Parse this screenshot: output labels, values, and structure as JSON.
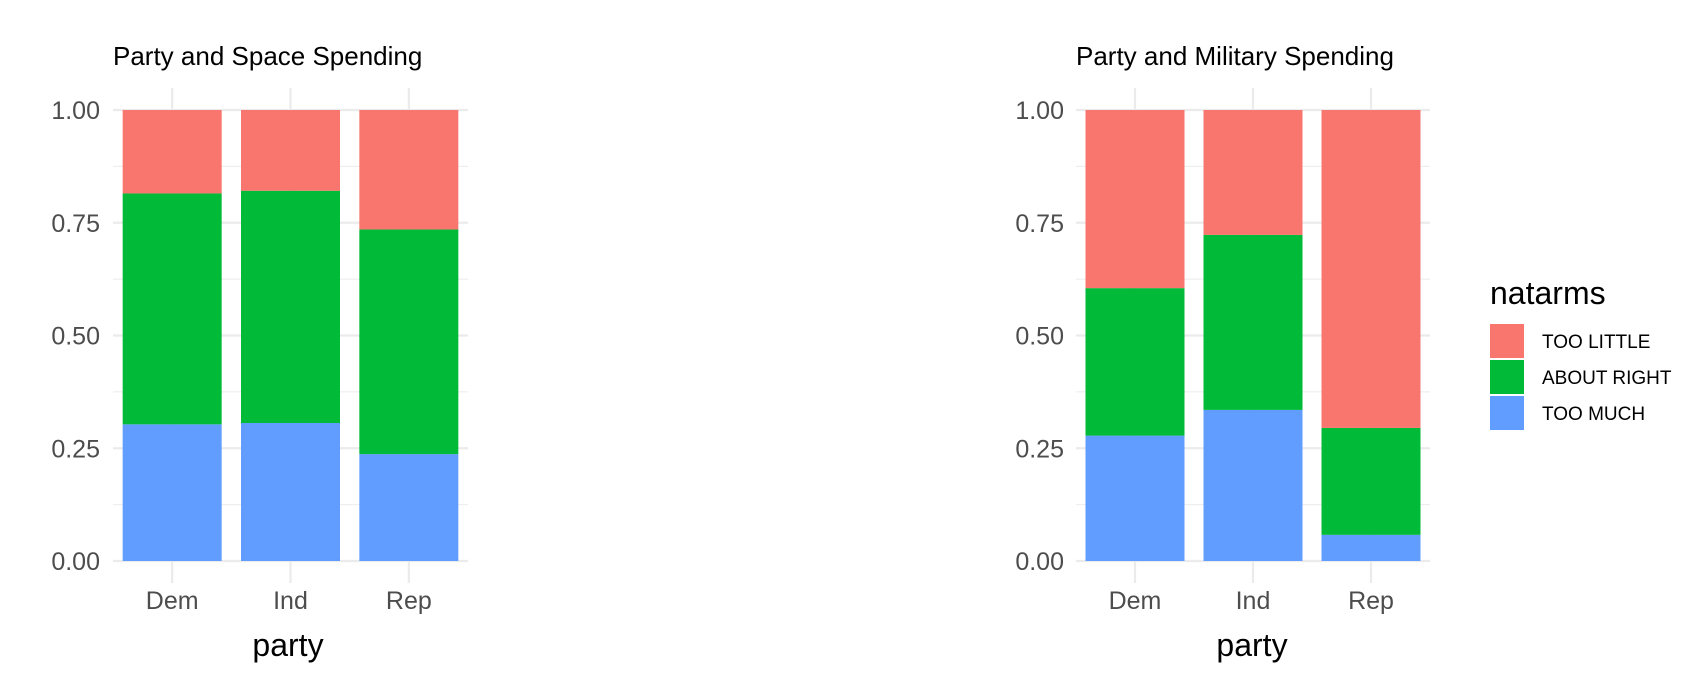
{
  "chart_data": [
    {
      "type": "bar",
      "stacked": true,
      "title": "Party and Space Spending",
      "xlabel": "party",
      "ylabel": "",
      "categories": [
        "Dem",
        "Ind",
        "Rep"
      ],
      "ylim": [
        0,
        1
      ],
      "yticks": [
        "0.00",
        "0.25",
        "0.50",
        "0.75",
        "1.00"
      ],
      "series": [
        {
          "name": "TOO MUCH",
          "color": "#619CFF",
          "values": [
            0.303,
            0.306,
            0.237
          ]
        },
        {
          "name": "ABOUT RIGHT",
          "color": "#00BA38",
          "values": [
            0.512,
            0.515,
            0.498
          ]
        },
        {
          "name": "TOO LITTLE",
          "color": "#F8766D",
          "values": [
            0.185,
            0.179,
            0.265
          ]
        }
      ],
      "grid": true,
      "legend": "none"
    },
    {
      "type": "bar",
      "stacked": true,
      "title": "Party and Military Spending",
      "xlabel": "party",
      "ylabel": "",
      "categories": [
        "Dem",
        "Ind",
        "Rep"
      ],
      "ylim": [
        0,
        1
      ],
      "yticks": [
        "0.00",
        "0.25",
        "0.50",
        "0.75",
        "1.00"
      ],
      "series": [
        {
          "name": "TOO MUCH",
          "color": "#619CFF",
          "values": [
            0.278,
            0.335,
            0.058
          ]
        },
        {
          "name": "ABOUT RIGHT",
          "color": "#00BA38",
          "values": [
            0.327,
            0.388,
            0.237
          ]
        },
        {
          "name": "TOO LITTLE",
          "color": "#F8766D",
          "values": [
            0.395,
            0.277,
            0.705
          ]
        }
      ],
      "grid": true,
      "legend": "right"
    }
  ],
  "legend": {
    "title": "natarms",
    "items": [
      {
        "label": "TOO LITTLE",
        "color": "#F8766D"
      },
      {
        "label": "ABOUT RIGHT",
        "color": "#00BA38"
      },
      {
        "label": "TOO MUCH",
        "color": "#619CFF"
      }
    ]
  }
}
